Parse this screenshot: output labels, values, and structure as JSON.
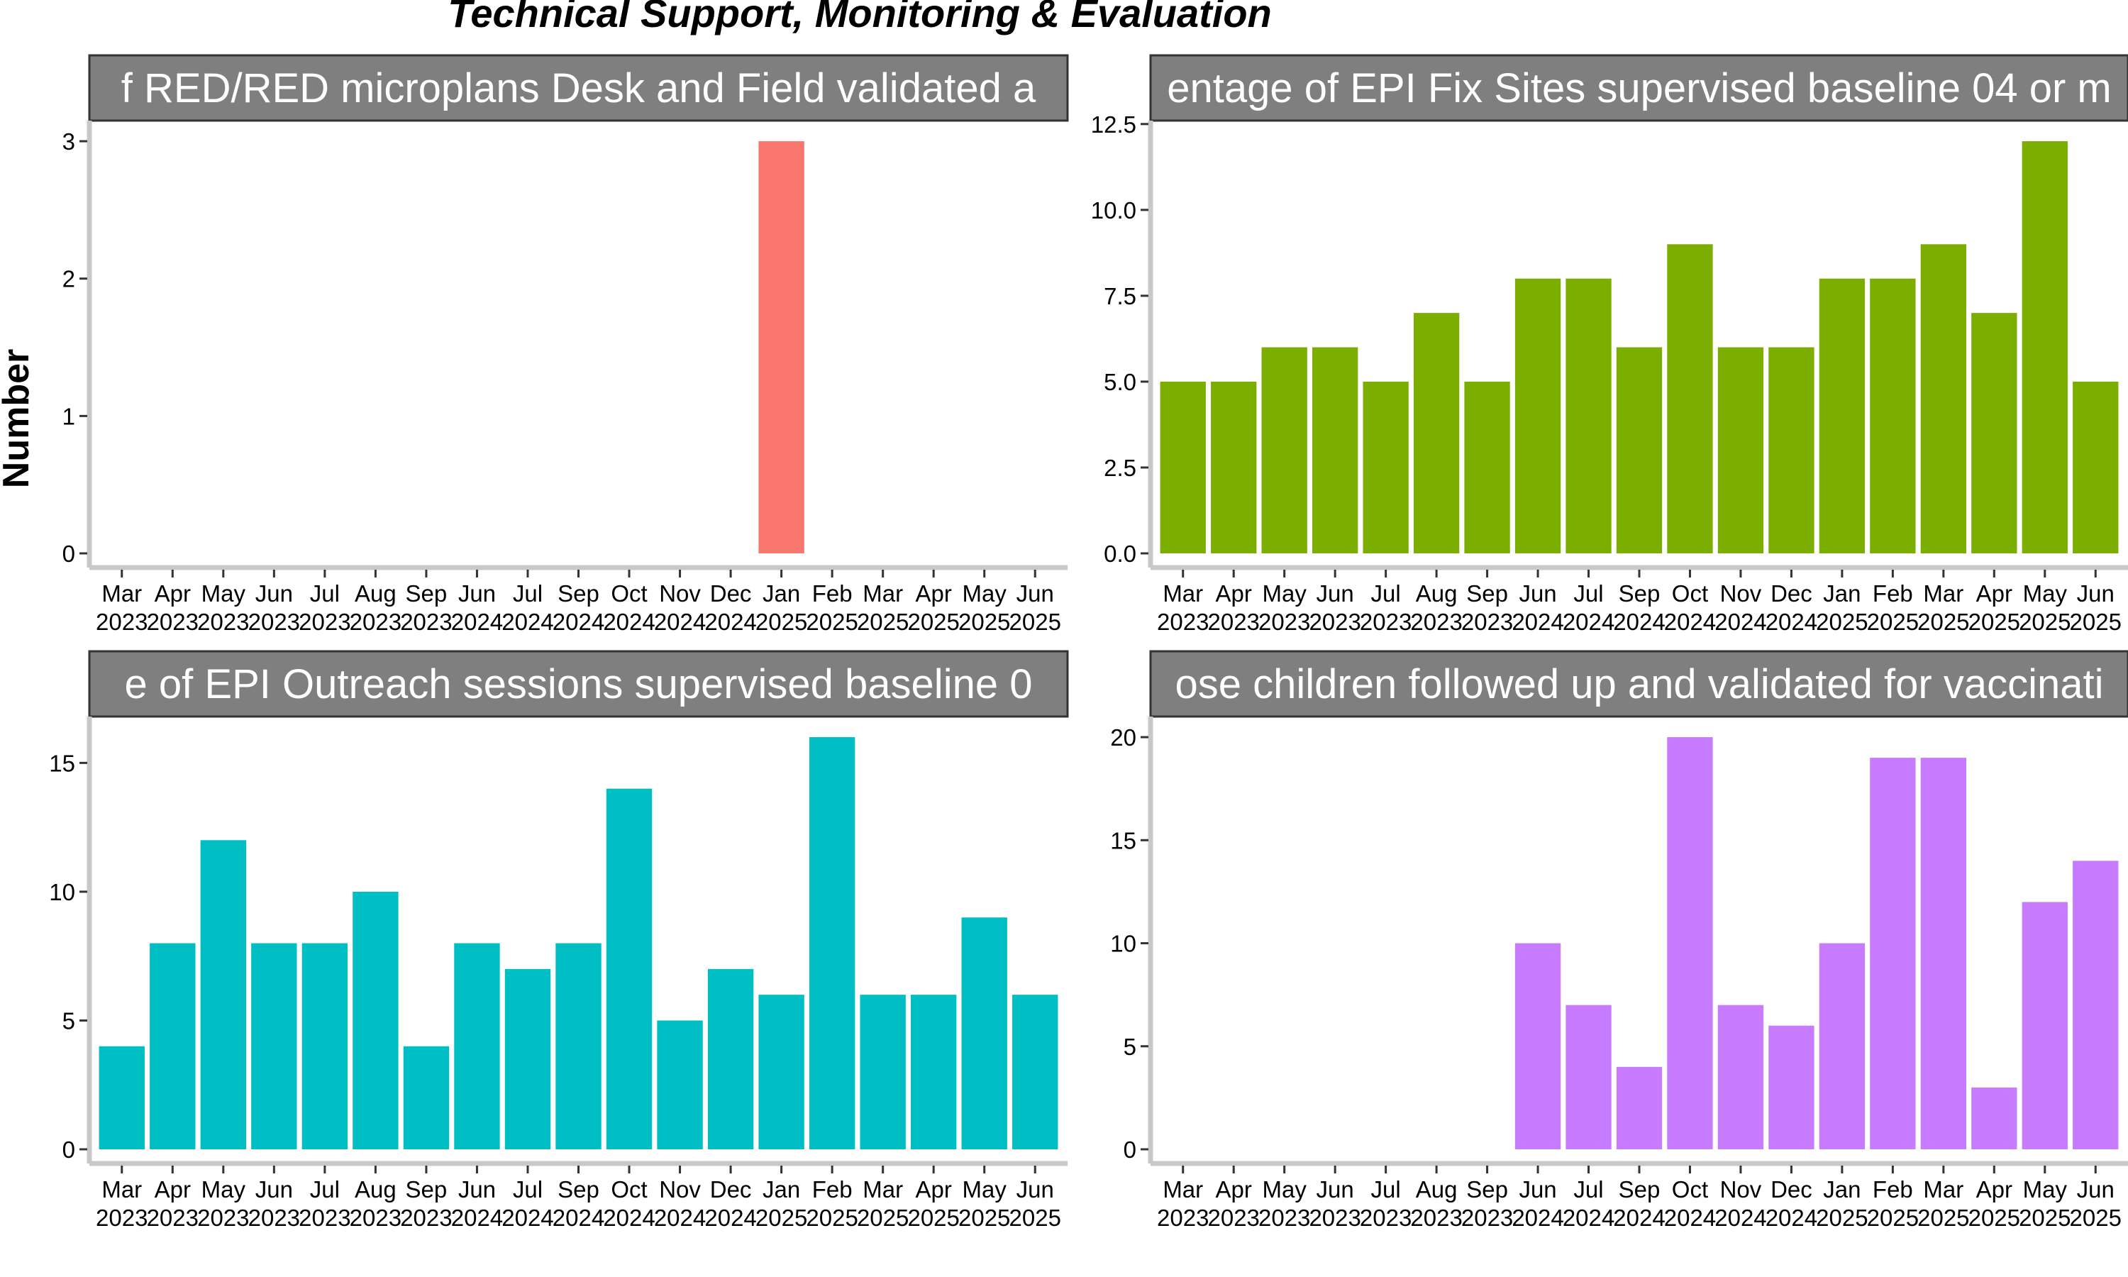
{
  "figure": {
    "title": "Technical Support, Monitoring & Evaluation",
    "ylabel": "Number"
  },
  "colors": {
    "strip_background": "#7f7f7f",
    "axis_line": "#c8c8c8",
    "tick": "#333333"
  },
  "chart_data": [
    {
      "type": "bar",
      "title": "f RED/RED microplans Desk and Field validated a",
      "color": "#f8766d",
      "categories": [
        "Mar 2023",
        "Apr 2023",
        "May 2023",
        "Jun 2023",
        "Jul 2023",
        "Aug 2023",
        "Sep 2023",
        "Jun 2024",
        "Jul 2024",
        "Sep 2024",
        "Oct 2024",
        "Nov 2024",
        "Dec 2024",
        "Jan 2025",
        "Feb 2025",
        "Mar 2025",
        "Apr 2025",
        "May 2025",
        "Jun 2025"
      ],
      "values": [
        null,
        null,
        null,
        null,
        null,
        null,
        null,
        null,
        null,
        null,
        null,
        null,
        null,
        3,
        null,
        null,
        null,
        null,
        null
      ],
      "ylim": [
        0,
        3.15
      ],
      "yticks": [
        0,
        1,
        2,
        3
      ],
      "ytick_labels": [
        "0",
        "1",
        "2",
        "3"
      ],
      "grid": false
    },
    {
      "type": "bar",
      "title": "entage of EPI Fix Sites supervised baseline 04 or m",
      "color": "#7cae00",
      "categories": [
        "Mar 2023",
        "Apr 2023",
        "May 2023",
        "Jun 2023",
        "Jul 2023",
        "Aug 2023",
        "Sep 2023",
        "Jun 2024",
        "Jul 2024",
        "Sep 2024",
        "Oct 2024",
        "Nov 2024",
        "Dec 2024",
        "Jan 2025",
        "Feb 2025",
        "Mar 2025",
        "Apr 2025",
        "May 2025",
        "Jun 2025"
      ],
      "values": [
        5,
        5,
        6,
        6,
        5,
        7,
        5,
        8,
        8,
        6,
        9,
        6,
        6,
        8,
        8,
        9,
        7,
        12,
        5
      ],
      "ylim": [
        0,
        12.6
      ],
      "yticks": [
        0,
        2.5,
        5,
        7.5,
        10,
        12.5
      ],
      "ytick_labels": [
        "0.0",
        "2.5",
        "5.0",
        "7.5",
        "10.0",
        "12.5"
      ],
      "grid": false
    },
    {
      "type": "bar",
      "title": "e of EPI Outreach sessions supervised baseline 0",
      "color": "#00bfc4",
      "categories": [
        "Mar 2023",
        "Apr 2023",
        "May 2023",
        "Jun 2023",
        "Jul 2023",
        "Aug 2023",
        "Sep 2023",
        "Jun 2024",
        "Jul 2024",
        "Sep 2024",
        "Oct 2024",
        "Nov 2024",
        "Dec 2024",
        "Jan 2025",
        "Feb 2025",
        "Mar 2025",
        "Apr 2025",
        "May 2025",
        "Jun 2025"
      ],
      "values": [
        4,
        8,
        12,
        8,
        8,
        10,
        4,
        8,
        7,
        8,
        14,
        5,
        7,
        6,
        16,
        6,
        6,
        9,
        6
      ],
      "ylim": [
        0,
        16.8
      ],
      "yticks": [
        0,
        5,
        10,
        15
      ],
      "ytick_labels": [
        "0",
        "5",
        "10",
        "15"
      ],
      "grid": false
    },
    {
      "type": "bar",
      "title": "ose children followed up and validated for vaccinati",
      "color": "#c77cff",
      "categories": [
        "Mar 2023",
        "Apr 2023",
        "May 2023",
        "Jun 2023",
        "Jul 2023",
        "Aug 2023",
        "Sep 2023",
        "Jun 2024",
        "Jul 2024",
        "Sep 2024",
        "Oct 2024",
        "Nov 2024",
        "Dec 2024",
        "Jan 2025",
        "Feb 2025",
        "Mar 2025",
        "Apr 2025",
        "May 2025",
        "Jun 2025"
      ],
      "values": [
        null,
        null,
        null,
        null,
        null,
        null,
        null,
        10,
        7,
        4,
        20,
        7,
        6,
        10,
        19,
        19,
        3,
        12,
        14
      ],
      "ylim": [
        0,
        21
      ],
      "yticks": [
        0,
        5,
        10,
        15,
        20
      ],
      "ytick_labels": [
        "0",
        "5",
        "10",
        "15",
        "20"
      ],
      "grid": false
    }
  ]
}
